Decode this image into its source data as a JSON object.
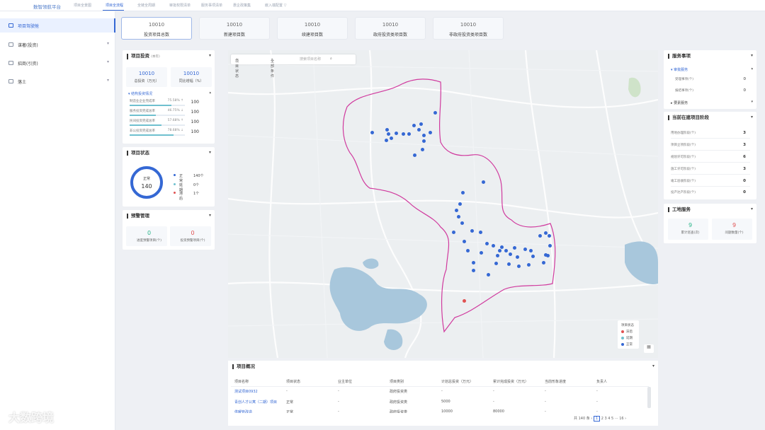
{
  "topnav": {
    "logo": "数智领航平台",
    "items": [
      "项目全景图",
      "项目全流程",
      "全链全周期",
      "审批权限清单",
      "服务事项清单",
      "惠企政策集",
      "嵌入端配置 ▽"
    ]
  },
  "sidebar": {
    "items": [
      {
        "label": "项目驾驶舱"
      },
      {
        "label": "谋著(投资)"
      },
      {
        "label": "招商(引资)"
      },
      {
        "label": "落土"
      }
    ]
  },
  "stats": [
    {
      "value": "10010",
      "label": "投资项目总数"
    },
    {
      "value": "10010",
      "label": "新建项目数"
    },
    {
      "value": "10010",
      "label": "续建项目数"
    },
    {
      "value": "10010",
      "label": "政府投资类项目数"
    },
    {
      "value": "10010",
      "label": "非政府投资类项目数"
    }
  ],
  "investment": {
    "title": "项目投资",
    "unit": "(本年)",
    "cards": [
      {
        "value": "10010",
        "label": "总投资（万元）"
      },
      {
        "value": "10010",
        "label": "同比增幅（%）"
      }
    ],
    "section_title": "结构投资情况",
    "bars": [
      {
        "label": "制造业企业完成率",
        "percent": "75.58% ↑",
        "value": "100",
        "fill": 0.76
      },
      {
        "label": "服务投资完成总率",
        "percent": "46.75% ↓",
        "value": "100",
        "fill": 0.47
      },
      {
        "label": "民间投资完成总率",
        "percent": "57.68% ↑",
        "value": "100",
        "fill": 0.58
      },
      {
        "label": "非公投资完成总率",
        "percent": "78.68% ↓",
        "value": "100",
        "fill": 0.79
      }
    ]
  },
  "status": {
    "title": "项目状态",
    "donut_label": "正常",
    "donut_value": "140",
    "legend": [
      {
        "label": "正常",
        "value": "140个",
        "color": "#3568d4"
      },
      {
        "label": "延期",
        "value": "0个",
        "color": "#6fc0cf"
      },
      {
        "label": "滞后",
        "value": "1个",
        "color": "#e05252"
      }
    ]
  },
  "warning": {
    "title": "预警管理",
    "items": [
      {
        "value": "0",
        "label": "进度预警项目(个)",
        "color": "#2bb58a"
      },
      {
        "value": "0",
        "label": "投资预警项目(个)",
        "color": "#e05252"
      }
    ]
  },
  "map": {
    "filter_status": "项目状态",
    "filter_all": "全部条件",
    "search_placeholder": "搜索项目名称",
    "legend_title": "项目状态",
    "legend": [
      {
        "label": "滞后",
        "color": "#e05252"
      },
      {
        "label": "延期",
        "color": "#6fc0cf"
      },
      {
        "label": "正常",
        "color": "#3568d4"
      }
    ]
  },
  "table": {
    "title": "项目概况",
    "headers": [
      "项目名称",
      "项目状态",
      "业主单位",
      "项目类别",
      "计划总投资（万元）",
      "累计完成投资（万元）",
      "当前形象进度",
      "负责人"
    ],
    "rows": [
      [
        "测试项目0932",
        "-",
        "-",
        "政府投资类",
        "-",
        "-",
        "-",
        "-"
      ],
      [
        "青创人才公寓（二期）项目",
        "正常",
        "-",
        "政府投资类",
        "5000",
        "-",
        "-",
        "-"
      ],
      [
        "供暖管改造",
        "正常",
        "-",
        "政府投资类",
        "10000",
        "80000",
        "-",
        "-"
      ]
    ],
    "pager": {
      "total": "共 140 条",
      "pages": [
        "1",
        "2",
        "3",
        "4",
        "5",
        "···",
        "16"
      ]
    }
  },
  "services": {
    "title": "服务事项",
    "group1": "审批服务",
    "rows": [
      {
        "label": "受理事项(个)",
        "value": "0"
      },
      {
        "label": "报结事项(个)",
        "value": "0"
      }
    ],
    "group2": "要素服务"
  },
  "stages": {
    "title": "当前在建项目阶段",
    "rows": [
      {
        "label": "用地办理阶段(个)",
        "value": "3"
      },
      {
        "label": "项目立项阶段(个)",
        "value": "3"
      },
      {
        "label": "规划许可阶段(个)",
        "value": "6"
      },
      {
        "label": "施工许可阶段(个)",
        "value": "3"
      },
      {
        "label": "竣工验收阶段(个)",
        "value": "0"
      },
      {
        "label": "投产达产阶段(个)",
        "value": "0"
      }
    ]
  },
  "site": {
    "title": "工地服务",
    "items": [
      {
        "value": "9",
        "label": "累计巡查(次)",
        "color": "#2bb58a"
      },
      {
        "value": "9",
        "label": "问题数量(个)",
        "color": "#e05252"
      }
    ]
  },
  "watermark": "大数跨境"
}
